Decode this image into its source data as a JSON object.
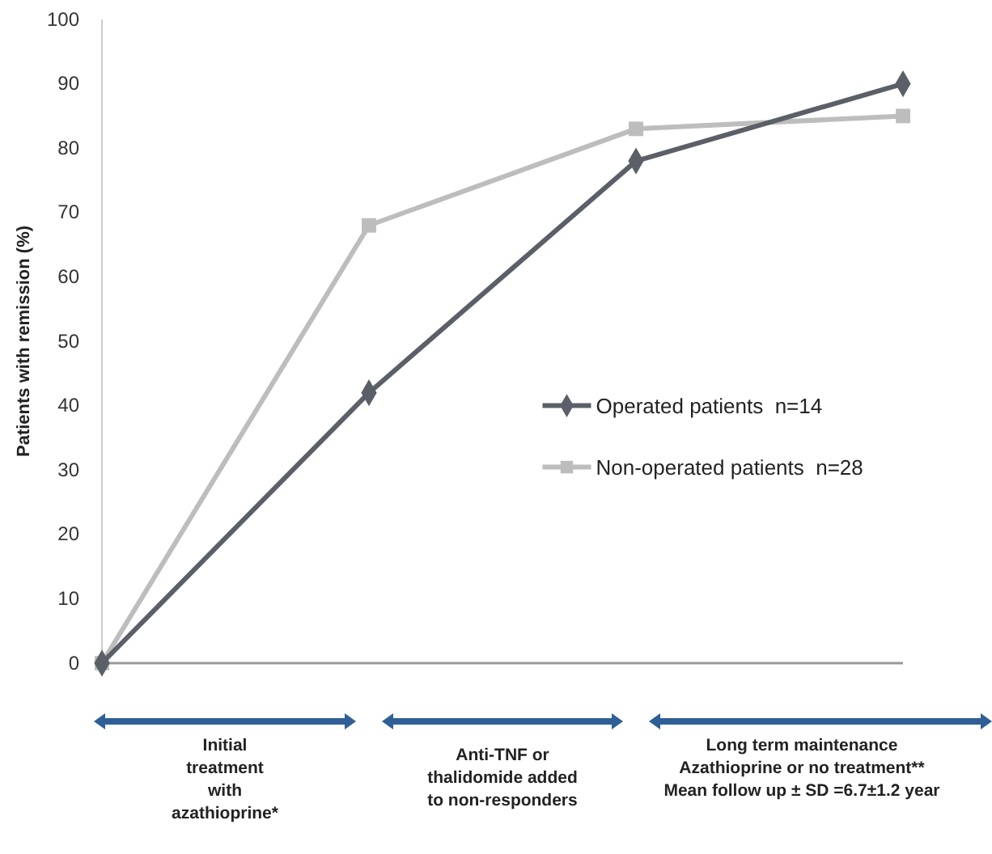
{
  "chart_data": {
    "type": "line",
    "ylabel": "Patients with remission (%)",
    "categories": [
      null,
      null,
      null,
      null
    ],
    "ylim": [
      0,
      100
    ],
    "yticks": [
      0,
      10,
      20,
      30,
      40,
      50,
      60,
      70,
      80,
      90,
      100
    ],
    "tick_labels": "y",
    "grid": false,
    "legend": "right",
    "line_style": "solid",
    "series": [
      {
        "name": "Operated patients  n=14",
        "color": "#5b6068",
        "marker": "diamond",
        "values": [
          0,
          42,
          78,
          90
        ]
      },
      {
        "name": "Non-operated patients  n=28",
        "color": "#bdbdbd",
        "marker": "square",
        "values": [
          0,
          68,
          83,
          85
        ]
      }
    ],
    "annotations": [
      "Initial\ntreatment\nwith\nazathioprine*",
      "Anti-TNF or\nthalidomide added\nto non-responders",
      "Long term maintenance\nAzathioprine or no treatment**\nMean follow up ± SD =6.7±1.2 year"
    ]
  }
}
